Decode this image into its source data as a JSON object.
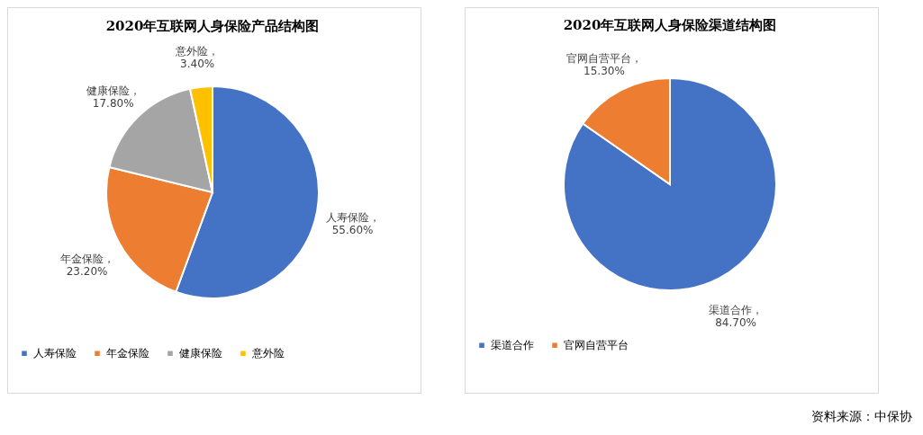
{
  "chart_data": [
    {
      "type": "pie",
      "title": "2020年互联网人身保险产品结构图",
      "categories": [
        "人寿保险",
        "年金保险",
        "健康保险",
        "意外险"
      ],
      "values": [
        55.6,
        23.2,
        17.8,
        3.4
      ],
      "colors": [
        "#4472c4",
        "#ed7d31",
        "#a5a5a5",
        "#ffc000"
      ],
      "value_labels": [
        "人寿保险，55.60%",
        "年金保险，23.20%",
        "健康保险，17.80%",
        "意外险，3.40%"
      ],
      "legend": "bottom"
    },
    {
      "type": "pie",
      "title": "2020年互联网人身保险渠道结构图",
      "categories": [
        "渠道合作",
        "官网自营平台"
      ],
      "values": [
        84.7,
        15.3
      ],
      "colors": [
        "#4472c4",
        "#ed7d31"
      ],
      "value_labels": [
        "渠道合作，84.70%",
        "官网自营平台，15.30%"
      ],
      "legend": "bottom",
      "annotations": [
        "资料来源：中保协"
      ]
    }
  ]
}
